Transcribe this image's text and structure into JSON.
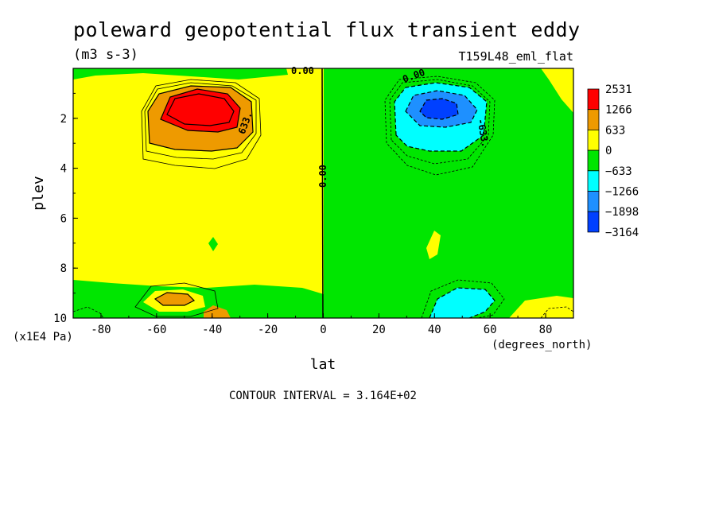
{
  "colors": {
    "pos_high": "#ff0000",
    "pos_mid": "#ee9a00",
    "pos_low": "#ffff00",
    "neg_low": "#00e600",
    "neg_mid": "#00ffff",
    "neg_high": "#1e90ff",
    "neg_max": "#0040ff"
  },
  "chart_data": {
    "type": "heatmap",
    "title": "poleward geopotential flux transient eddy",
    "units": "(m3 s-3)",
    "run_name": "T159L48_eml_flat",
    "xlabel": "lat",
    "xunits": "(degrees_north)",
    "ylabel": "plev",
    "yunits": "(x1E4 Pa)",
    "xlim": [
      -90,
      90
    ],
    "ylim": [
      0,
      10
    ],
    "y_inverted": true,
    "x_ticks": [
      -80,
      -60,
      -40,
      -20,
      0,
      20,
      40,
      60,
      80
    ],
    "y_ticks": [
      2,
      4,
      6,
      8,
      10
    ],
    "levels": [
      2531,
      1266,
      633,
      0,
      -633,
      -1266,
      -1898,
      -3164
    ],
    "contour_labels": [
      "0.00",
      "0.00",
      "0.00",
      "633.",
      "-633."
    ],
    "contour_interval_text": "CONTOUR INTERVAL = 3.164E+02",
    "features": [
      {
        "sign": "positive",
        "center_lat": -40,
        "center_plev": 1.8,
        "peak": 2531
      },
      {
        "sign": "negative",
        "center_lat": 40,
        "center_plev": 1.8,
        "peak": -1898
      },
      {
        "sign": "positive",
        "center_lat": -55,
        "center_plev": 9.2,
        "peak": 1266
      },
      {
        "sign": "negative",
        "center_lat": 50,
        "center_plev": 9.3,
        "peak": -1266
      }
    ]
  }
}
